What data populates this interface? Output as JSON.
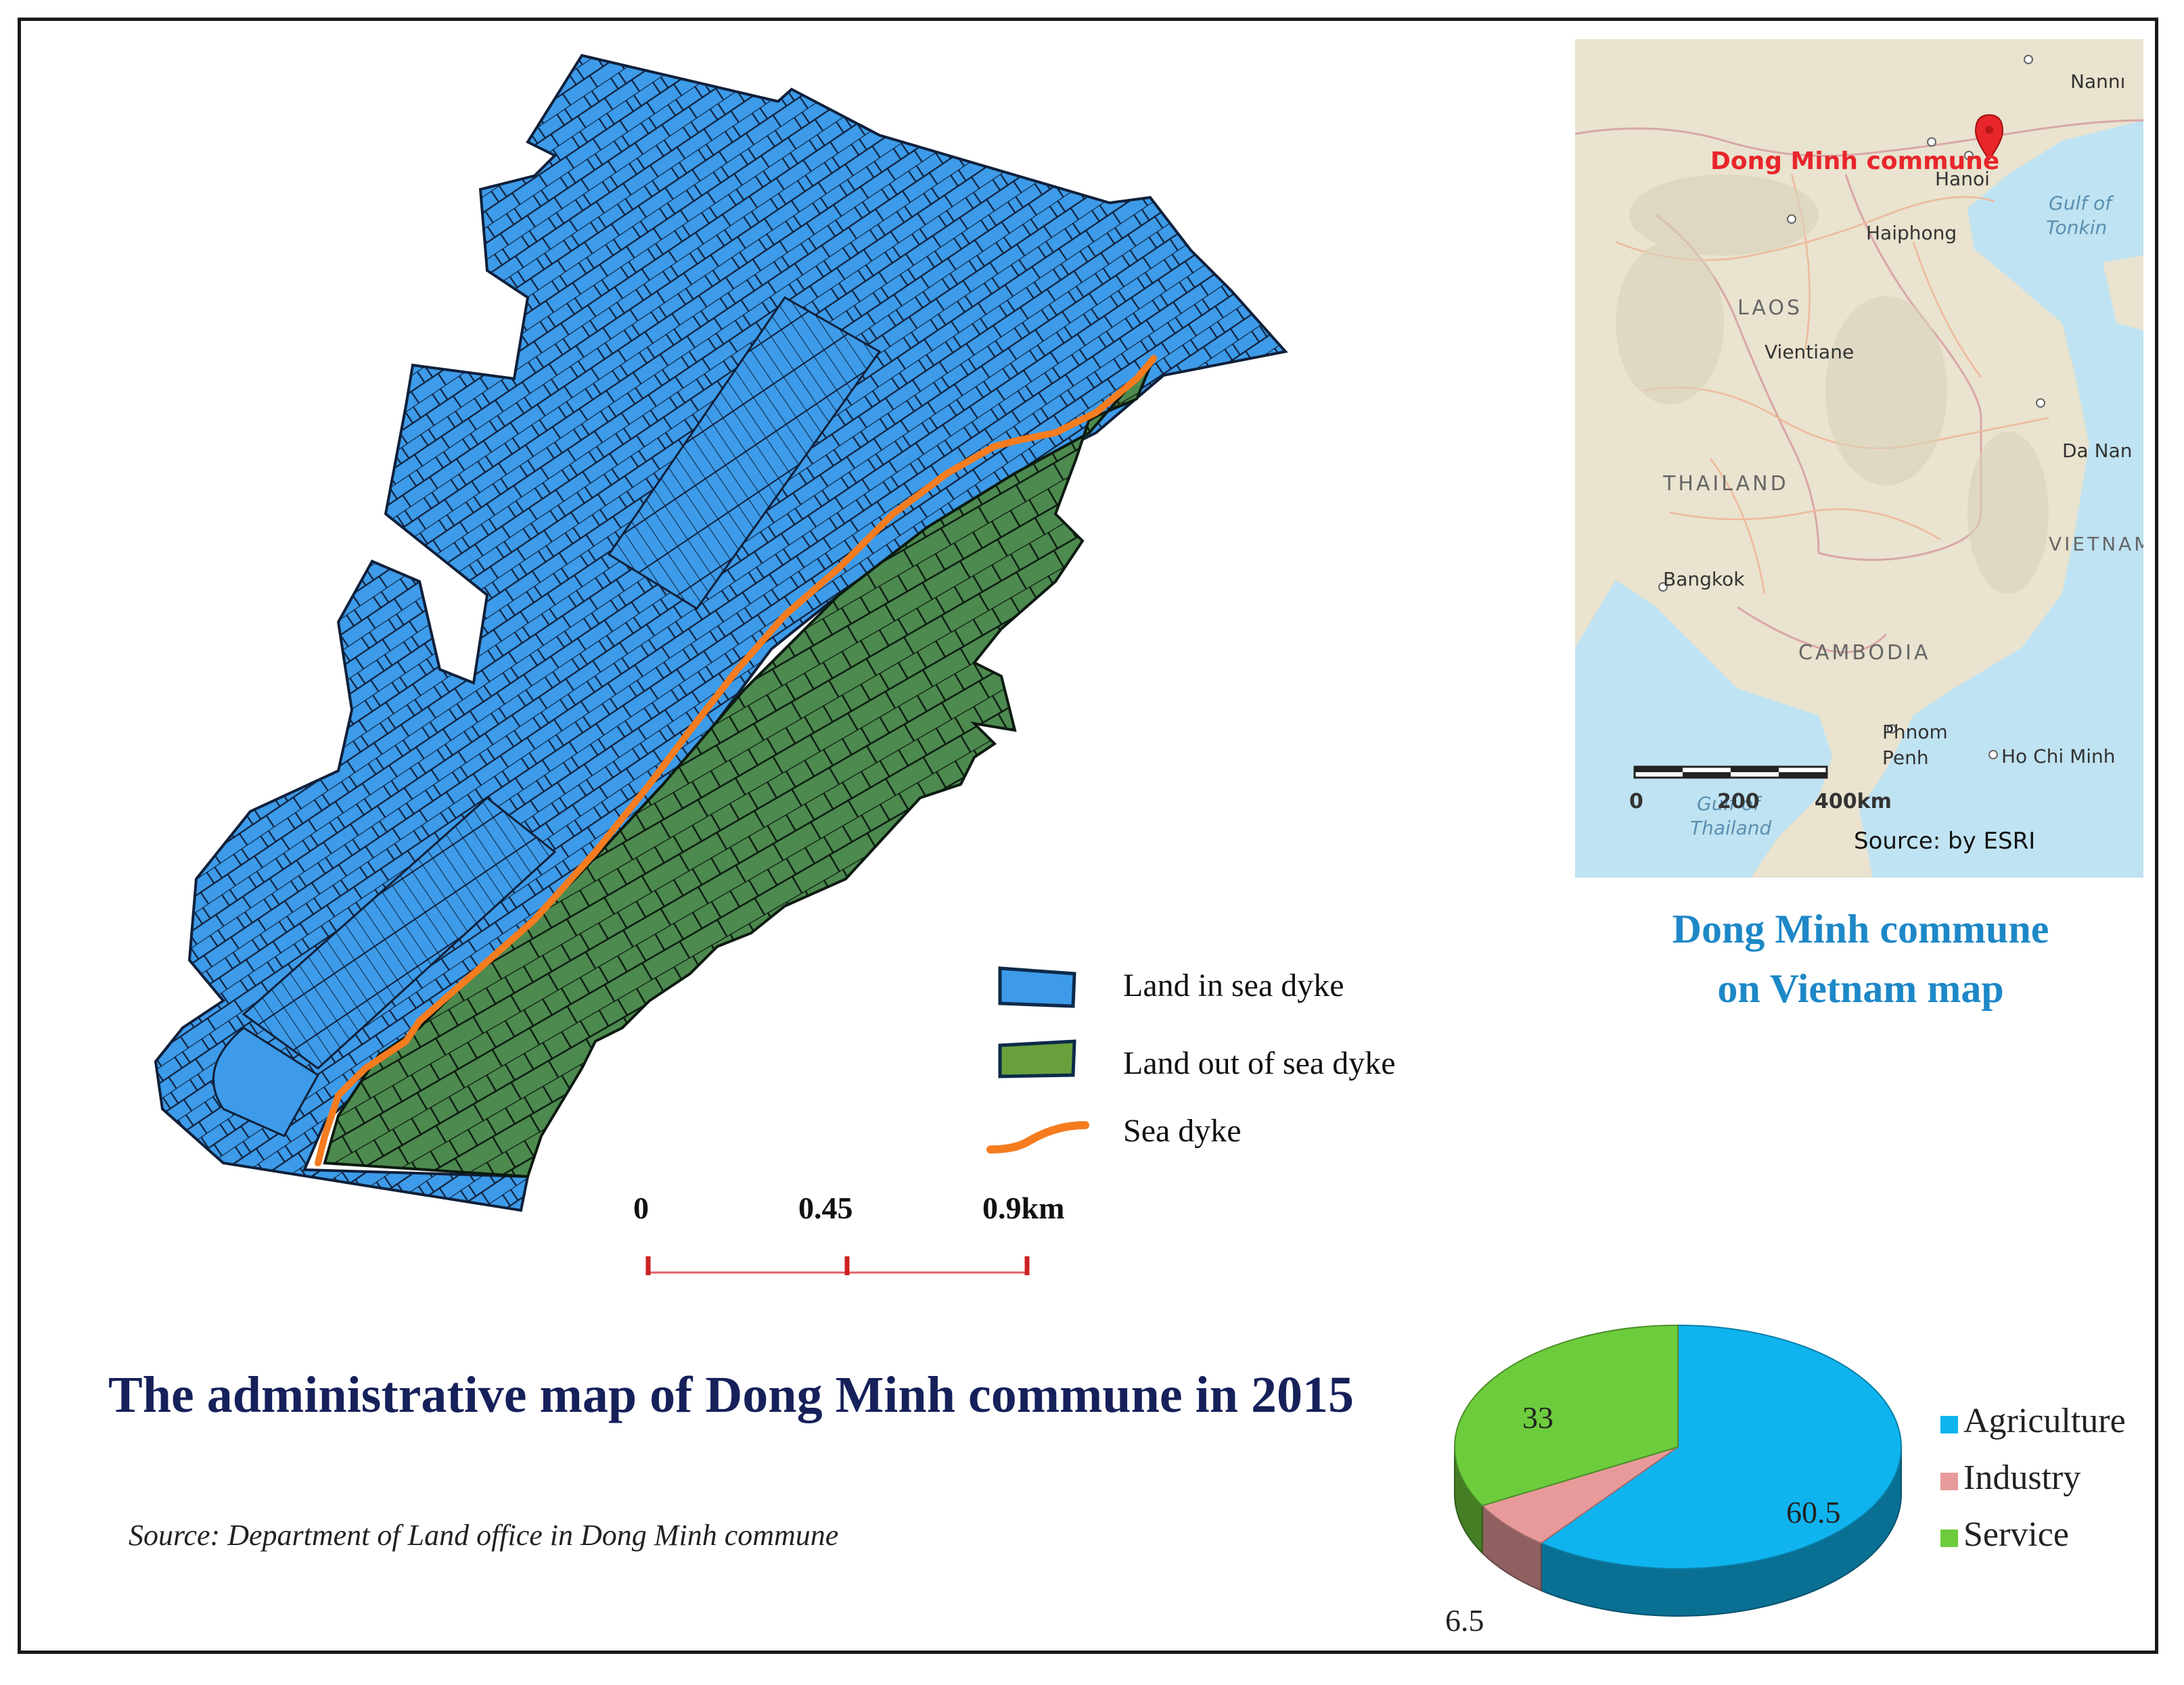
{
  "legend": {
    "land_in_sea_dyke": "Land in sea dyke",
    "land_out_of_sea_dyke": "Land out of sea dyke",
    "sea_dyke": "Sea dyke"
  },
  "scale_bar": {
    "tick_0": "0",
    "tick_1": "0.45",
    "tick_2": "0.9km"
  },
  "title": "The administrative map of Dong Minh commune in 2015",
  "source": "Source:  Department of Land office in Dong Minh commune",
  "inset": {
    "highlight_label": "Dong Minh commune",
    "places": {
      "nanning": "Nannı",
      "hanoi": "Hanoi",
      "haiphong": "Haiphong",
      "gulf": "Gulf of",
      "tonkin": "Tonkin",
      "laos": "LAOS",
      "vientiane": "Vientiane",
      "thailand": "THAILAND",
      "danang": "Da Nan",
      "vietnam": "VIETNAM",
      "bangkok": "Bangkok",
      "cambodia": "CAMBODIA",
      "phnom": "Phnom",
      "penh": "Penh",
      "hochiminh": "Ho Chi Minh",
      "gulf_thailand_1": "Gulf of",
      "gulf_thailand_2": "Thailand"
    },
    "scale": {
      "tick_0": "0",
      "tick_1": "200",
      "tick_2": "400km"
    },
    "source": "Source:  by ESRI",
    "colors": {
      "land": "#e9e3cf",
      "sea": "#bfe3f2",
      "highlight": "#e8262b"
    }
  },
  "inset_title": {
    "line1": "Dong Minh  commune",
    "line2": "on Vietnam  map"
  },
  "chart_data": {
    "type": "pie",
    "categories": [
      "Agriculture",
      "Industry",
      "Service"
    ],
    "values": [
      60.5,
      6.5,
      33
    ],
    "labels": [
      "60.5",
      "6.5",
      "33"
    ],
    "colors": [
      "#0fb4ef",
      "#e89a9a",
      "#6dcc3c"
    ],
    "legend_position": "right"
  },
  "colors": {
    "land_in": "#3d9be9",
    "land_out": "#4d8a4f",
    "dyke": "#f57c1f",
    "title": "#16205a",
    "inset_title": "#1e88c7",
    "scale": "#cc2222"
  }
}
